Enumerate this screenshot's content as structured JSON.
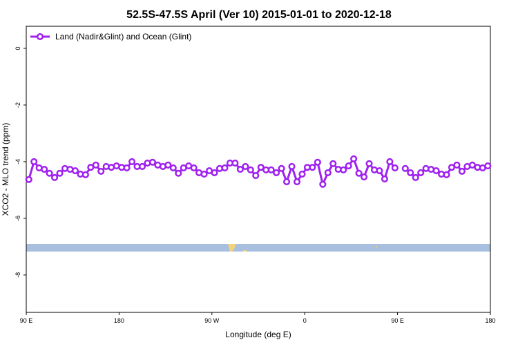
{
  "chart_data": {
    "type": "line",
    "title": "52.5S-47.5S April (Ver 10)   2015-01-01 to 2020-12-18",
    "x_label": "Longitude (deg E)",
    "y_label": "XCO2 - MLO trend (ppm)",
    "x": [
      92.5,
      97.5,
      102.5,
      107.5,
      112.5,
      117.5,
      122.5,
      127.5,
      132.5,
      137.5,
      142.5,
      147.5,
      152.5,
      157.5,
      162.5,
      167.5,
      172.5,
      177.5,
      182.5,
      187.5,
      192.5,
      197.5,
      202.5,
      207.5,
      212.5,
      217.5,
      222.5,
      227.5,
      232.5,
      237.5,
      242.5,
      247.5,
      252.5,
      257.5,
      262.5,
      267.5,
      272.5,
      277.5,
      282.5,
      287.5,
      292.5,
      297.5,
      302.5,
      307.5,
      312.5,
      317.5,
      322.5,
      327.5,
      332.5,
      337.5,
      342.5,
      347.5,
      352.5,
      357.5,
      362.5,
      367.5,
      372.5,
      377.5,
      382.5,
      387.5,
      392.5,
      397.5,
      402.5,
      407.5,
      412.5,
      417.5,
      422.5,
      427.5,
      432.5,
      437.5,
      442.5,
      447.5,
      452.5,
      457.5,
      462.5,
      467.5,
      472.5,
      477.5,
      482.5,
      487.5,
      492.5,
      497.5,
      502.5,
      507.5,
      512.5,
      517.5,
      522.5,
      527.5,
      532.5,
      537.5
    ],
    "series": [
      {
        "name": "Land (Nadir&Glint) and Ocean (Glint)",
        "color": "#a020f0",
        "values": [
          -4.63,
          -4.0,
          -4.22,
          -4.27,
          -4.41,
          -4.56,
          -4.41,
          -4.24,
          -4.27,
          -4.32,
          -4.44,
          -4.46,
          -4.2,
          -4.12,
          -4.34,
          -4.17,
          -4.2,
          -4.15,
          -4.2,
          -4.22,
          -4.0,
          -4.17,
          -4.17,
          -4.05,
          -4.02,
          -4.12,
          -4.17,
          -4.12,
          -4.22,
          -4.41,
          -4.22,
          -4.15,
          -4.22,
          -4.39,
          -4.44,
          -4.32,
          -4.39,
          -4.24,
          -4.22,
          -4.05,
          -4.05,
          -4.27,
          -4.17,
          -4.29,
          -4.49,
          -4.2,
          -4.29,
          -4.29,
          -4.39,
          -4.24,
          -4.71,
          -4.17,
          -4.71,
          -4.44,
          -4.2,
          -4.2,
          -4.02,
          -4.8,
          -4.39,
          -4.07,
          -4.27,
          -4.29,
          -4.15,
          -3.9,
          -4.41,
          -4.54,
          -4.07,
          -4.29,
          -4.32,
          -4.61,
          -4.0,
          -4.22,
          null,
          -4.24,
          -4.39,
          -4.56,
          -4.39,
          -4.24,
          -4.27,
          -4.32,
          -4.44,
          -4.46,
          -4.2,
          -4.12,
          -4.34,
          -4.17,
          -4.12,
          -4.2,
          -4.22,
          -4.15
        ]
      }
    ],
    "xlim": [
      90,
      540
    ],
    "xticks": [
      {
        "value": 90,
        "label": "90 E"
      },
      180,
      {
        "value": 270,
        "label": "90 W"
      },
      {
        "value": 360,
        "label": "0"
      },
      {
        "value": 450,
        "label": "90 E"
      },
      {
        "value": 540,
        "label": "180"
      }
    ],
    "ylim": [
      0.78,
      -9.32
    ],
    "yticks": [
      0,
      -2,
      -4,
      -6,
      -8
    ],
    "legend": "top-left"
  }
}
